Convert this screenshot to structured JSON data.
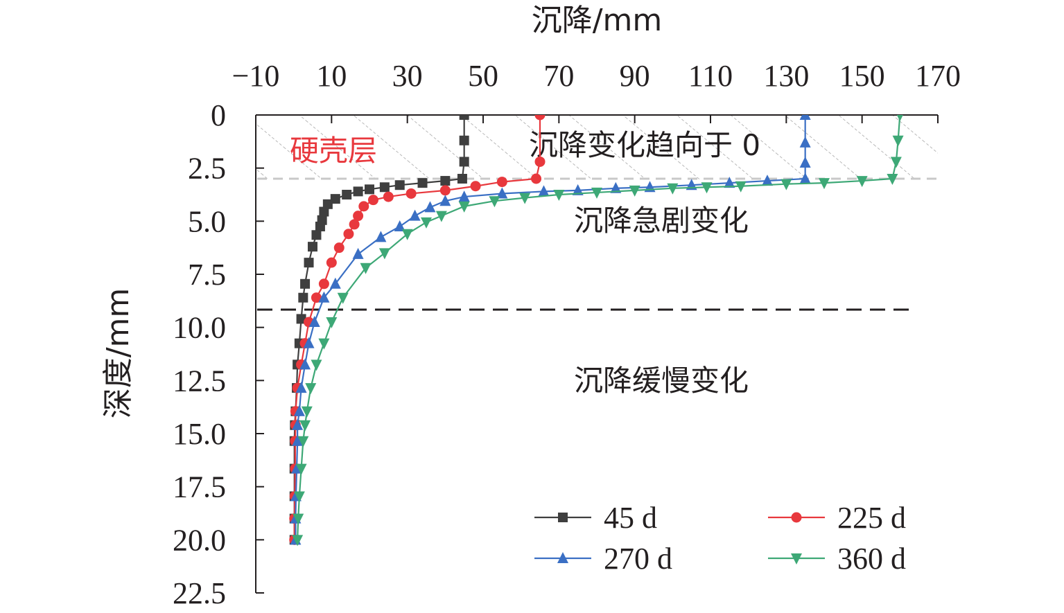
{
  "chart_data": {
    "type": "line",
    "xlabel": "沉降/mm",
    "ylabel": "深度/mm",
    "xlim": [
      -10,
      170
    ],
    "ylim": [
      0,
      22.5
    ],
    "x_axis_position": "top",
    "y_axis_inverted": true,
    "x_ticks": [
      "−10",
      "10",
      "30",
      "50",
      "70",
      "90",
      "110",
      "130",
      "150",
      "170"
    ],
    "x_tick_values": [
      -10,
      10,
      30,
      50,
      70,
      90,
      110,
      130,
      150,
      170
    ],
    "y_ticks": [
      "0",
      "2.5",
      "5.0",
      "7.5",
      "10.0",
      "12.5",
      "15.0",
      "17.5",
      "20.0",
      "22.5"
    ],
    "y_tick_values": [
      0,
      2.5,
      5.0,
      7.5,
      10.0,
      12.5,
      15.0,
      17.5,
      20.0,
      22.5
    ],
    "grid": false,
    "legend_placement": "bottom-right",
    "annotations": {
      "crust": "硬壳层",
      "zone_top": "沉降变化趋向于 0",
      "zone_mid": "沉降急剧变化",
      "zone_low": "沉降缓慢变化"
    },
    "reference_lines": [
      {
        "depth": 3.0,
        "style": "dashed",
        "color": "#c8c8c8"
      },
      {
        "depth": 9.2,
        "style": "dashed",
        "color": "#231f20"
      }
    ],
    "series": [
      {
        "name": "45 d",
        "color": "#3f3f3f",
        "marker": "square",
        "points": [
          [
            45,
            0
          ],
          [
            45,
            1.2
          ],
          [
            45,
            2.2
          ],
          [
            44.5,
            3.0
          ],
          [
            40,
            3.1
          ],
          [
            34,
            3.2
          ],
          [
            28,
            3.3
          ],
          [
            24,
            3.4
          ],
          [
            20,
            3.5
          ],
          [
            17,
            3.6
          ],
          [
            14,
            3.75
          ],
          [
            11,
            3.95
          ],
          [
            9,
            4.2
          ],
          [
            8,
            4.55
          ],
          [
            7.5,
            4.95
          ],
          [
            7,
            5.25
          ],
          [
            6,
            5.65
          ],
          [
            5,
            6.2
          ],
          [
            4,
            6.95
          ],
          [
            3,
            7.95
          ],
          [
            2.5,
            8.6
          ],
          [
            2,
            9.6
          ],
          [
            1.5,
            10.75
          ],
          [
            1,
            11.75
          ],
          [
            0.8,
            12.85
          ],
          [
            0.5,
            13.95
          ],
          [
            0.3,
            14.6
          ],
          [
            0.2,
            15.35
          ],
          [
            0.2,
            16.65
          ],
          [
            0.2,
            17.95
          ],
          [
            0.2,
            19.0
          ],
          [
            0.2,
            20.0
          ]
        ]
      },
      {
        "name": "225 d",
        "color": "#e8383d",
        "marker": "circle",
        "points": [
          [
            65,
            0
          ],
          [
            65,
            2.2
          ],
          [
            64,
            3.0
          ],
          [
            55,
            3.15
          ],
          [
            48,
            3.35
          ],
          [
            40,
            3.55
          ],
          [
            31,
            3.7
          ],
          [
            25,
            3.85
          ],
          [
            21,
            4.0
          ],
          [
            18.5,
            4.3
          ],
          [
            17,
            4.75
          ],
          [
            16,
            5.15
          ],
          [
            14.5,
            5.6
          ],
          [
            12,
            6.25
          ],
          [
            10,
            6.95
          ],
          [
            8,
            7.95
          ],
          [
            6,
            8.6
          ],
          [
            4,
            9.75
          ],
          [
            3,
            10.75
          ],
          [
            2,
            11.75
          ],
          [
            1,
            12.85
          ],
          [
            0.5,
            13.95
          ],
          [
            0.5,
            14.6
          ],
          [
            0.4,
            15.35
          ],
          [
            0.4,
            16.65
          ],
          [
            0.3,
            17.95
          ],
          [
            0.2,
            19.0
          ],
          [
            0.2,
            20.0
          ]
        ]
      },
      {
        "name": "270 d",
        "color": "#3a6fc4",
        "marker": "triangle-up",
        "points": [
          [
            135,
            0
          ],
          [
            135,
            1.3
          ],
          [
            135,
            2.25
          ],
          [
            135,
            3.0
          ],
          [
            125,
            3.1
          ],
          [
            115,
            3.2
          ],
          [
            105,
            3.3
          ],
          [
            94,
            3.4
          ],
          [
            85,
            3.45
          ],
          [
            75,
            3.55
          ],
          [
            66,
            3.6
          ],
          [
            55,
            3.7
          ],
          [
            45,
            3.85
          ],
          [
            40,
            4.05
          ],
          [
            36,
            4.35
          ],
          [
            32,
            4.75
          ],
          [
            28,
            5.25
          ],
          [
            23,
            5.75
          ],
          [
            17,
            6.55
          ],
          [
            11,
            7.95
          ],
          [
            8,
            8.6
          ],
          [
            5.5,
            9.75
          ],
          [
            4,
            10.75
          ],
          [
            3,
            11.75
          ],
          [
            2,
            12.85
          ],
          [
            1.5,
            13.95
          ],
          [
            1,
            14.6
          ],
          [
            1,
            15.35
          ],
          [
            0.8,
            16.65
          ],
          [
            0.6,
            17.95
          ],
          [
            0.5,
            19.0
          ],
          [
            0.5,
            20.0
          ]
        ]
      },
      {
        "name": "360 d",
        "color": "#3da876",
        "marker": "triangle-down",
        "points": [
          [
            160,
            0
          ],
          [
            159.5,
            1.2
          ],
          [
            159,
            2.2
          ],
          [
            158,
            3.0
          ],
          [
            150,
            3.1
          ],
          [
            140,
            3.2
          ],
          [
            130,
            3.25
          ],
          [
            118,
            3.35
          ],
          [
            109,
            3.4
          ],
          [
            100,
            3.45
          ],
          [
            90,
            3.55
          ],
          [
            80,
            3.65
          ],
          [
            70,
            3.75
          ],
          [
            61,
            3.9
          ],
          [
            53,
            4.05
          ],
          [
            45,
            4.3
          ],
          [
            39,
            4.75
          ],
          [
            35,
            5.05
          ],
          [
            30,
            5.6
          ],
          [
            24,
            6.5
          ],
          [
            19,
            7.2
          ],
          [
            13,
            8.6
          ],
          [
            10,
            9.75
          ],
          [
            8,
            10.75
          ],
          [
            6,
            11.75
          ],
          [
            4.5,
            12.85
          ],
          [
            3.5,
            13.95
          ],
          [
            3,
            14.6
          ],
          [
            2.5,
            15.35
          ],
          [
            2,
            16.65
          ],
          [
            1.5,
            17.95
          ],
          [
            1.2,
            19.0
          ],
          [
            1,
            20.0
          ]
        ]
      }
    ]
  }
}
